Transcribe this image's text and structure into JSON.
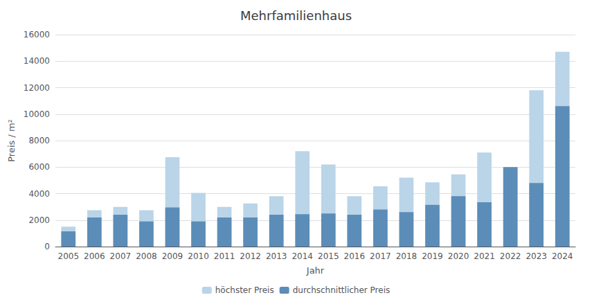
{
  "chart_data": {
    "type": "bar",
    "title": "Mehrfamilienhaus",
    "xlabel": "Jahr",
    "ylabel": "Preis / m²",
    "categories": [
      "2005",
      "2006",
      "2007",
      "2008",
      "2009",
      "2010",
      "2011",
      "2012",
      "2013",
      "2014",
      "2015",
      "2016",
      "2017",
      "2018",
      "2019",
      "2020",
      "2021",
      "2022",
      "2023",
      "2024"
    ],
    "series": [
      {
        "name": "höchster Preis",
        "color": "#bad4e8",
        "values": [
          1500,
          2750,
          3000,
          2750,
          6750,
          4050,
          3000,
          3250,
          3800,
          7200,
          6200,
          3800,
          4550,
          5200,
          4850,
          5450,
          7100,
          6000,
          11800,
          14700
        ]
      },
      {
        "name": "durchschnittlicher Preis",
        "color": "#5b8db8",
        "values": [
          1150,
          2200,
          2400,
          1900,
          2950,
          1900,
          2200,
          2200,
          2400,
          2450,
          2500,
          2400,
          2800,
          2600,
          3150,
          3800,
          3350,
          6000,
          4800,
          10600
        ]
      }
    ],
    "ylim": [
      0,
      16000
    ],
    "yticks": [
      0,
      2000,
      4000,
      6000,
      8000,
      10000,
      12000,
      14000,
      16000
    ],
    "grid": true,
    "legend": "bottom"
  }
}
